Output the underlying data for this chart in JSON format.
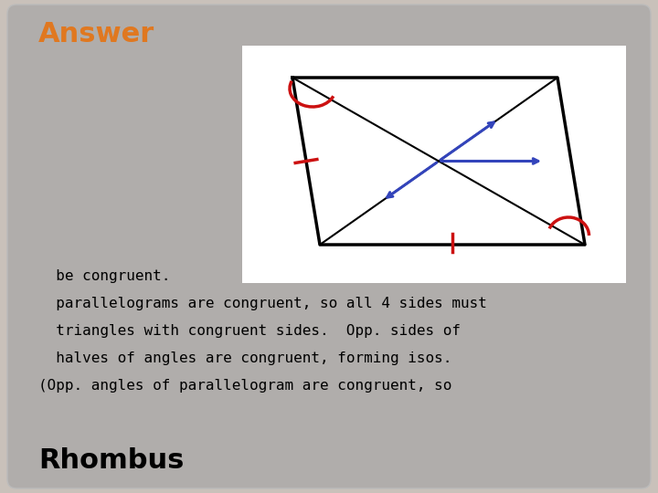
{
  "title": "Rhombus",
  "body_line1": "(Opp. angles of parallelogram are congruent, so",
  "body_line2": "  halves of angles are congruent, forming isos.",
  "body_line3": "  triangles with congruent sides.  Opp. sides of",
  "body_line4": "  parallelograms are congruent, so all 4 sides must",
  "body_line5": "  be congruent.",
  "answer_text": "Answer",
  "bg_outer": "#c9c1ba",
  "bg_inner": "#b0adab",
  "diagram_bg": "#ffffff",
  "title_color": "#000000",
  "body_color": "#000000",
  "answer_color": "#e07820",
  "rhombus_color": "#000000",
  "blue_color": "#3344bb",
  "red_color": "#cc1111"
}
